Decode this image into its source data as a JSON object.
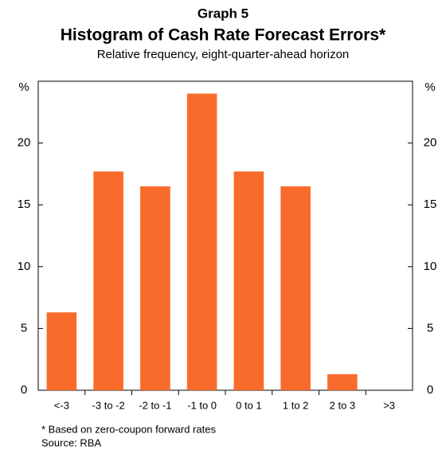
{
  "chart_data": {
    "type": "bar",
    "graph_label": "Graph 5",
    "title": "Histogram of Cash Rate Forecast Errors*",
    "subtitle": "Relative frequency, eight-quarter-ahead horizon",
    "y_unit": "%",
    "categories": [
      "<-3",
      "-3 to -2",
      "-2 to -1",
      "-1 to 0",
      "0 to 1",
      "1 to 2",
      "2 to 3",
      ">3"
    ],
    "values": [
      6.3,
      17.7,
      16.5,
      24.0,
      17.7,
      16.5,
      1.3,
      0
    ],
    "color": "#f96b2b",
    "ylim": [
      0,
      25
    ],
    "yticks": [
      0,
      5,
      10,
      15,
      20
    ],
    "grid": false,
    "footnote": "* Based on zero-coupon forward rates",
    "source": "Source: RBA"
  }
}
